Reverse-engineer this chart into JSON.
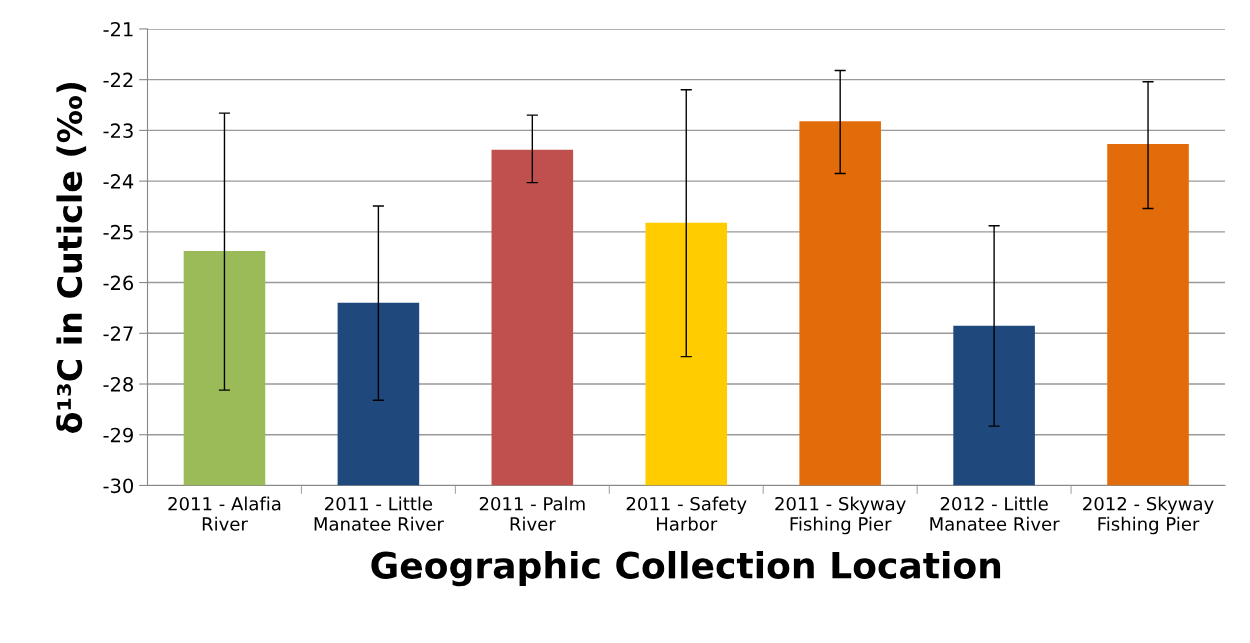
{
  "chart_data": {
    "type": "bar",
    "xlabel": "Geographic Collection Location",
    "ylabel": "δ¹³C in Cuticle (‰)",
    "categories": [
      "2011 - Alafia\nRiver",
      "2011 - Little\nManatee River",
      "2011 - Palm\nRiver",
      "2011 - Safety\nHarbor",
      "2011 - Skyway\nFishing Pier",
      "2012 - Little\nManatee River",
      "2012 - Skyway\nFishing Pier"
    ],
    "base": [
      -30,
      -30,
      -30,
      -30,
      -30,
      -30,
      -30
    ],
    "values": [
      4.62,
      3.6,
      6.62,
      5.18,
      7.18,
      3.15,
      6.73
    ],
    "colors": [
      "#9bbb59",
      "#1f497d",
      "#c0504d",
      "#ffcc00",
      "#e36c0a",
      "#1f497d",
      "#e36c0a"
    ],
    "errors": [
      [
        -28.12,
        -22.66
      ],
      [
        -28.32,
        -24.49
      ],
      [
        -24.03,
        -22.7
      ],
      [
        -27.46,
        -22.2
      ],
      [
        -23.85,
        -21.82
      ],
      [
        -28.83,
        -24.88
      ],
      [
        -24.54,
        -22.04
      ]
    ],
    "ylim": [
      -30,
      -21
    ],
    "yticks": [
      -30,
      -29,
      -28,
      -27,
      -26,
      -25,
      -24,
      -23,
      -22,
      -21
    ],
    "grid": "y",
    "legend": false
  }
}
